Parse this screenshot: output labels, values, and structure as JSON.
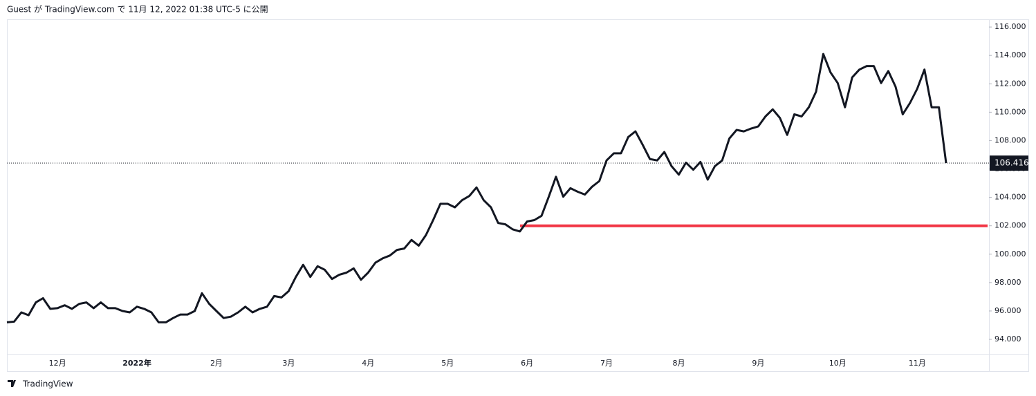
{
  "header": "Guest が TradingView.com で 11月 12, 2022 01:38 UTC-5 に公開",
  "footer": "TradingView",
  "chart_data": {
    "type": "line",
    "categories": [
      null,
      null,
      null,
      null,
      null,
      null,
      null,
      "12月",
      null,
      null,
      null,
      null,
      null,
      null,
      null,
      null,
      null,
      null,
      "2022年",
      null,
      null,
      null,
      null,
      null,
      null,
      null,
      null,
      null,
      null,
      "2月",
      null,
      null,
      null,
      null,
      null,
      null,
      null,
      null,
      null,
      "3月",
      null,
      null,
      null,
      null,
      null,
      null,
      null,
      null,
      null,
      null,
      "4月",
      null,
      null,
      null,
      null,
      null,
      null,
      null,
      null,
      null,
      null,
      "5月",
      null,
      null,
      null,
      null,
      null,
      null,
      null,
      null,
      null,
      null,
      "6月",
      null,
      null,
      null,
      null,
      null,
      null,
      null,
      null,
      null,
      null,
      "7月",
      null,
      null,
      null,
      null,
      null,
      null,
      null,
      null,
      null,
      "8月",
      null,
      null,
      null,
      null,
      null,
      null,
      null,
      null,
      null,
      null,
      "9月",
      null,
      null,
      null,
      null,
      null,
      null,
      null,
      null,
      null,
      null,
      "10月",
      null,
      null,
      null,
      null,
      null,
      null,
      null,
      null,
      null,
      null,
      "11月",
      null,
      null,
      null,
      null
    ],
    "series": [
      {
        "color": "#131722",
        "values": [
          95.2,
          95.25,
          95.9,
          95.7,
          96.6,
          96.9,
          96.15,
          96.2,
          96.4,
          96.15,
          96.5,
          96.6,
          96.2,
          96.6,
          96.2,
          96.2,
          96.0,
          95.9,
          96.3,
          96.15,
          95.9,
          95.2,
          95.2,
          95.5,
          95.75,
          95.75,
          96.0,
          97.25,
          96.5,
          96.0,
          95.5,
          95.6,
          95.9,
          96.3,
          95.9,
          96.15,
          96.3,
          97.05,
          96.95,
          97.4,
          98.4,
          99.25,
          98.4,
          99.15,
          98.9,
          98.25,
          98.55,
          98.7,
          99.0,
          98.2,
          98.7,
          99.4,
          99.7,
          99.9,
          100.3,
          100.4,
          101.0,
          100.6,
          101.35,
          102.4,
          103.55,
          103.55,
          103.3,
          103.8,
          104.1,
          104.7,
          103.8,
          103.3,
          102.2,
          102.1,
          101.75,
          101.6,
          102.3,
          102.4,
          102.7,
          104.05,
          105.45,
          104.05,
          104.65,
          104.4,
          104.2,
          104.75,
          105.15,
          106.6,
          107.1,
          107.1,
          108.25,
          108.65,
          107.7,
          106.7,
          106.6,
          107.2,
          106.2,
          105.6,
          106.45,
          105.95,
          106.5,
          105.25,
          106.2,
          106.6,
          108.15,
          108.75,
          108.65,
          108.85,
          109.0,
          109.7,
          110.2,
          109.6,
          108.4,
          109.85,
          109.7,
          110.35,
          111.45,
          114.1,
          112.8,
          112.05,
          110.35,
          112.45,
          113.0,
          113.25,
          113.25,
          112.05,
          112.9,
          111.8,
          109.85,
          110.65,
          111.65,
          113.0,
          110.35,
          110.35,
          106.416
        ]
      }
    ],
    "ylim": [
      92.98,
      116.54
    ],
    "yticks": [
      {
        "value": 94,
        "label": "94.000"
      },
      {
        "value": 96,
        "label": "96.000"
      },
      {
        "value": 98,
        "label": "98.000"
      },
      {
        "value": 100,
        "label": "100.000"
      },
      {
        "value": 102,
        "label": "102.000"
      },
      {
        "value": 104,
        "label": "104.000"
      },
      {
        "value": 106,
        "label": "106.000"
      },
      {
        "value": 108,
        "label": "108.000"
      },
      {
        "value": 110,
        "label": "110.000"
      },
      {
        "value": 112,
        "label": "112.000"
      },
      {
        "value": 114,
        "label": "114.000"
      },
      {
        "value": 116,
        "label": "116.000"
      }
    ],
    "hline": {
      "value": 102,
      "color": "#f23645"
    },
    "grid": false
  }
}
